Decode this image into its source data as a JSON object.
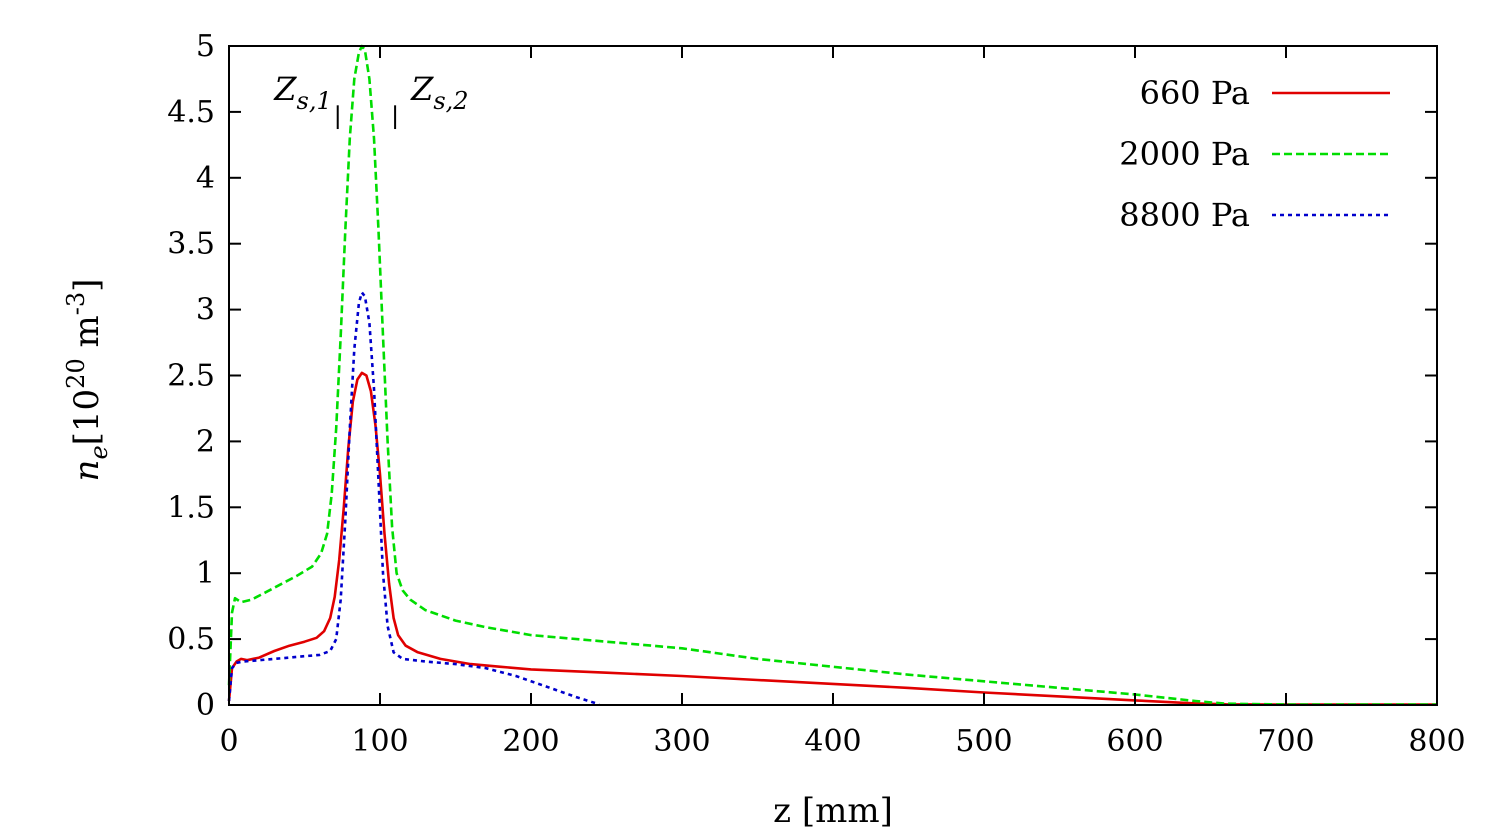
{
  "chart_data": {
    "type": "line",
    "xlabel": "z [mm]",
    "ylabel": {
      "n": "n",
      "sub": "e",
      "unit_open": "[10",
      "exp": "20",
      "unit_mid": " m",
      "exp2": "-3",
      "unit_close": "]"
    },
    "xlim": [
      0,
      800
    ],
    "ylim": [
      0,
      5
    ],
    "xticks": [
      "0",
      "100",
      "200",
      "300",
      "400",
      "500",
      "600",
      "700",
      "800"
    ],
    "yticks": [
      "0",
      "0.5",
      "1",
      "1.5",
      "2",
      "2.5",
      "3",
      "3.5",
      "4",
      "4.5",
      "5"
    ],
    "grid": false,
    "legend_position": "top-right",
    "markers": [
      {
        "label": "Z",
        "sub": "s,1",
        "z": 72,
        "y_range": [
          4.37,
          4.55
        ]
      },
      {
        "label": "Z",
        "sub": "s,2",
        "z": 110,
        "y_range": [
          4.37,
          4.55
        ]
      }
    ],
    "series": [
      {
        "name": "660 Pa",
        "color": "#e00000",
        "dash": "solid",
        "points": [
          [
            0,
            0.03
          ],
          [
            2,
            0.28
          ],
          [
            5,
            0.33
          ],
          [
            8,
            0.35
          ],
          [
            12,
            0.34
          ],
          [
            20,
            0.36
          ],
          [
            30,
            0.41
          ],
          [
            40,
            0.45
          ],
          [
            50,
            0.48
          ],
          [
            58,
            0.51
          ],
          [
            63,
            0.56
          ],
          [
            67,
            0.66
          ],
          [
            70,
            0.82
          ],
          [
            73,
            1.1
          ],
          [
            76,
            1.5
          ],
          [
            79,
            1.95
          ],
          [
            82,
            2.3
          ],
          [
            85,
            2.47
          ],
          [
            88,
            2.52
          ],
          [
            91,
            2.5
          ],
          [
            94,
            2.38
          ],
          [
            97,
            2.12
          ],
          [
            100,
            1.75
          ],
          [
            103,
            1.3
          ],
          [
            106,
            0.92
          ],
          [
            109,
            0.66
          ],
          [
            112,
            0.53
          ],
          [
            117,
            0.45
          ],
          [
            125,
            0.4
          ],
          [
            140,
            0.35
          ],
          [
            160,
            0.31
          ],
          [
            180,
            0.29
          ],
          [
            200,
            0.27
          ],
          [
            250,
            0.245
          ],
          [
            300,
            0.22
          ],
          [
            350,
            0.19
          ],
          [
            400,
            0.16
          ],
          [
            450,
            0.13
          ],
          [
            500,
            0.095
          ],
          [
            550,
            0.065
          ],
          [
            600,
            0.035
          ],
          [
            640,
            0.012
          ],
          [
            660,
            0.005
          ],
          [
            700,
            0.003
          ],
          [
            800,
            0.003
          ]
        ]
      },
      {
        "name": "2000 Pa",
        "color": "#00dd00",
        "dash": "dashed",
        "points": [
          [
            0,
            0.15
          ],
          [
            2,
            0.7
          ],
          [
            4,
            0.81
          ],
          [
            8,
            0.78
          ],
          [
            15,
            0.8
          ],
          [
            25,
            0.86
          ],
          [
            35,
            0.92
          ],
          [
            45,
            0.98
          ],
          [
            55,
            1.05
          ],
          [
            61,
            1.15
          ],
          [
            65,
            1.3
          ],
          [
            68,
            1.6
          ],
          [
            71,
            2.1
          ],
          [
            74,
            2.8
          ],
          [
            77,
            3.6
          ],
          [
            80,
            4.3
          ],
          [
            83,
            4.75
          ],
          [
            86,
            4.95
          ],
          [
            88,
            5.0
          ],
          [
            90,
            4.97
          ],
          [
            93,
            4.75
          ],
          [
            96,
            4.3
          ],
          [
            99,
            3.6
          ],
          [
            102,
            2.8
          ],
          [
            105,
            2.0
          ],
          [
            108,
            1.35
          ],
          [
            111,
            1.0
          ],
          [
            115,
            0.87
          ],
          [
            120,
            0.8
          ],
          [
            130,
            0.72
          ],
          [
            150,
            0.64
          ],
          [
            170,
            0.59
          ],
          [
            200,
            0.53
          ],
          [
            250,
            0.48
          ],
          [
            300,
            0.43
          ],
          [
            350,
            0.35
          ],
          [
            400,
            0.29
          ],
          [
            450,
            0.23
          ],
          [
            500,
            0.18
          ],
          [
            550,
            0.13
          ],
          [
            600,
            0.08
          ],
          [
            640,
            0.03
          ],
          [
            660,
            0.01
          ],
          [
            700,
            0.004
          ],
          [
            800,
            0.004
          ]
        ]
      },
      {
        "name": "8800 Pa",
        "color": "#0000cc",
        "dash": "dotted",
        "points": [
          [
            0,
            0.03
          ],
          [
            2,
            0.28
          ],
          [
            5,
            0.32
          ],
          [
            10,
            0.33
          ],
          [
            20,
            0.34
          ],
          [
            30,
            0.35
          ],
          [
            40,
            0.36
          ],
          [
            50,
            0.37
          ],
          [
            60,
            0.38
          ],
          [
            67,
            0.41
          ],
          [
            71,
            0.5
          ],
          [
            74,
            0.8
          ],
          [
            77,
            1.4
          ],
          [
            80,
            2.1
          ],
          [
            83,
            2.7
          ],
          [
            86,
            3.05
          ],
          [
            88,
            3.13
          ],
          [
            90,
            3.1
          ],
          [
            93,
            2.9
          ],
          [
            96,
            2.4
          ],
          [
            99,
            1.7
          ],
          [
            102,
            1.0
          ],
          [
            105,
            0.6
          ],
          [
            109,
            0.4
          ],
          [
            115,
            0.35
          ],
          [
            130,
            0.33
          ],
          [
            150,
            0.31
          ],
          [
            170,
            0.28
          ],
          [
            190,
            0.22
          ],
          [
            210,
            0.14
          ],
          [
            230,
            0.06
          ],
          [
            245,
            0.005
          ]
        ]
      }
    ]
  }
}
